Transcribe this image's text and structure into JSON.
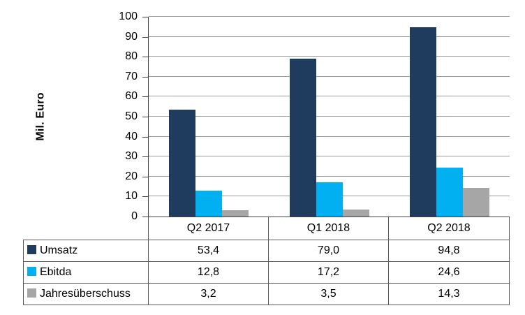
{
  "chart_data": {
    "type": "bar",
    "title": "",
    "xlabel": "",
    "ylabel": "Mil. Euro",
    "ylim": [
      0,
      100
    ],
    "yticks": [
      0,
      10,
      20,
      30,
      40,
      50,
      60,
      70,
      80,
      90,
      100
    ],
    "grid": true,
    "legend_position": "table-rows-left",
    "categories": [
      "Q2 2017",
      "Q1 2018",
      "Q2 2018"
    ],
    "series": [
      {
        "name": "Umsatz",
        "color": "#1f3b5e",
        "values": [
          53.4,
          79.0,
          94.8
        ],
        "value_labels": [
          "53,4",
          "79,0",
          "94,8"
        ]
      },
      {
        "name": "Ebitda",
        "color": "#00b0f0",
        "values": [
          12.8,
          17.2,
          24.6
        ],
        "value_labels": [
          "12,8",
          "17,2",
          "24,6"
        ]
      },
      {
        "name": "Jahresüberschuss",
        "color": "#a6a6a6",
        "values": [
          3.2,
          3.5,
          14.3
        ],
        "value_labels": [
          "3,2",
          "3,5",
          "14,3"
        ]
      }
    ]
  },
  "style": {
    "background": "#ffffff",
    "text_color": "#000000",
    "axis_color": "#404040",
    "gridline_color": "#999999",
    "table_border_color": "#595959"
  }
}
